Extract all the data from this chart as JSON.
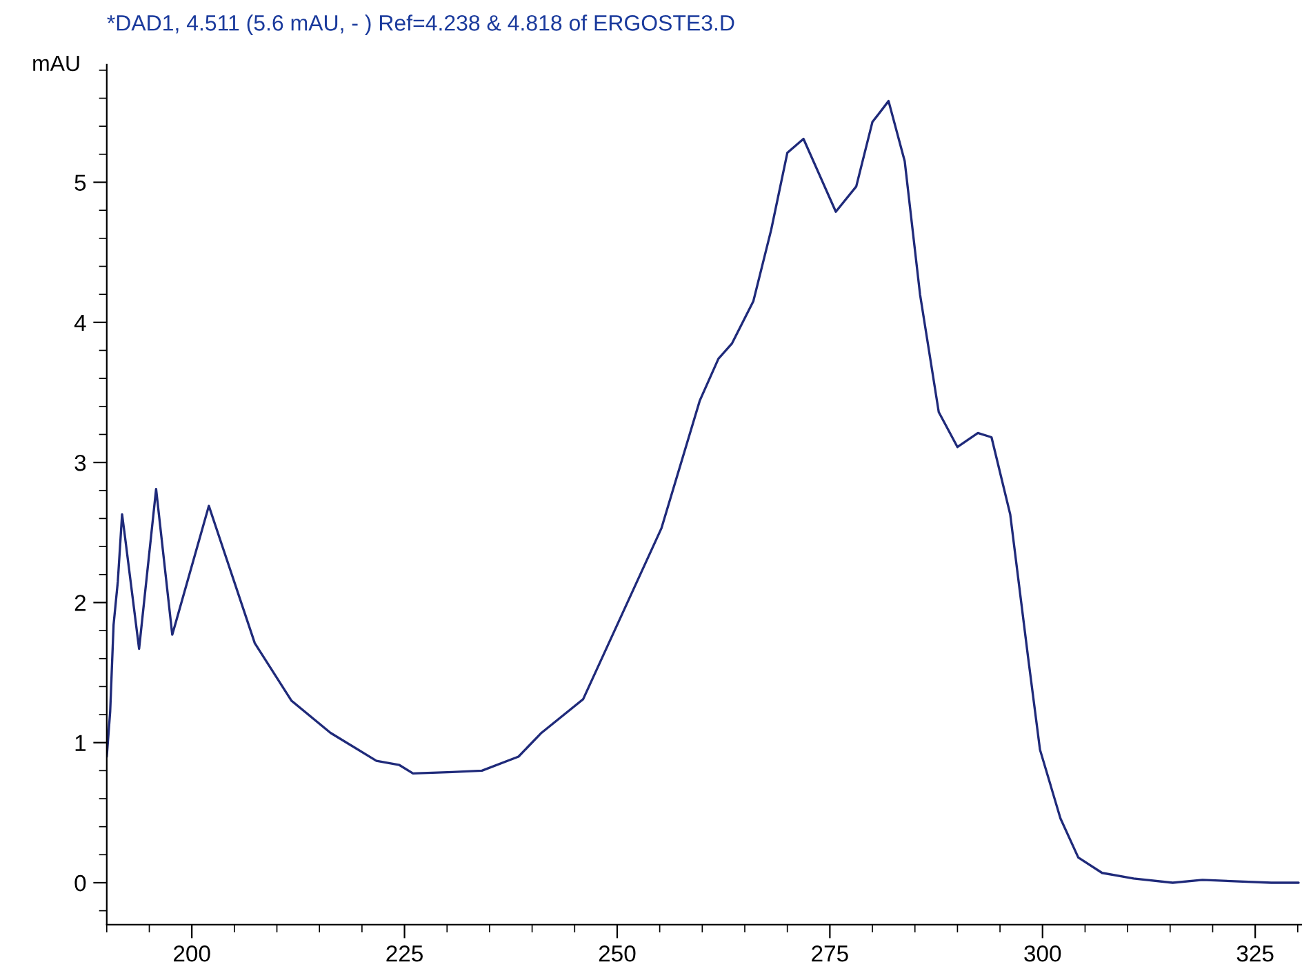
{
  "chart_data": {
    "type": "line",
    "title": "*DAD1, 4.511 (5.6 mAU, - ) Ref=4.238 & 4.818 of ERGOSTE3.D",
    "ylabel": "mAU",
    "xlim": [
      190,
      330.5
    ],
    "xticks": [
      200,
      225,
      250,
      275,
      300,
      325
    ],
    "ylim": [
      -0.3,
      5.84
    ],
    "yticks": [
      0,
      1,
      2,
      3,
      4,
      5
    ],
    "grid": false,
    "series": [
      {
        "color": "#1f2a7a",
        "x": [
          190.0,
          190.4,
          190.8,
          191.3,
          191.8,
          192.1,
          193.8,
          195.8,
          197.7,
          202.0,
          207.4,
          211.7,
          216.3,
          221.7,
          224.4,
          226.0,
          230.6,
          234.1,
          238.4,
          241.1,
          246.0,
          255.2,
          259.7,
          261.9,
          263.5,
          266.0,
          268.1,
          270.0,
          271.9,
          275.7,
          278.1,
          280.0,
          281.9,
          283.8,
          285.6,
          287.8,
          290.0,
          292.4,
          294.0,
          296.2,
          298.3,
          299.7,
          302.1,
          304.2,
          307.0,
          310.7,
          315.3,
          318.8,
          326.9,
          330.1
        ],
        "values": [
          0.9,
          1.22,
          1.84,
          2.15,
          2.63,
          2.49,
          1.67,
          2.81,
          1.77,
          2.69,
          1.71,
          1.3,
          1.07,
          0.87,
          0.84,
          0.78,
          0.79,
          0.8,
          0.9,
          1.07,
          1.31,
          2.53,
          3.44,
          3.74,
          3.85,
          4.15,
          4.66,
          5.21,
          5.31,
          4.79,
          4.97,
          5.43,
          5.58,
          5.15,
          4.2,
          3.36,
          3.11,
          3.21,
          3.18,
          2.63,
          1.61,
          0.95,
          0.46,
          0.18,
          0.07,
          0.03,
          0.0,
          0.02,
          0.0,
          0.0
        ]
      }
    ]
  }
}
